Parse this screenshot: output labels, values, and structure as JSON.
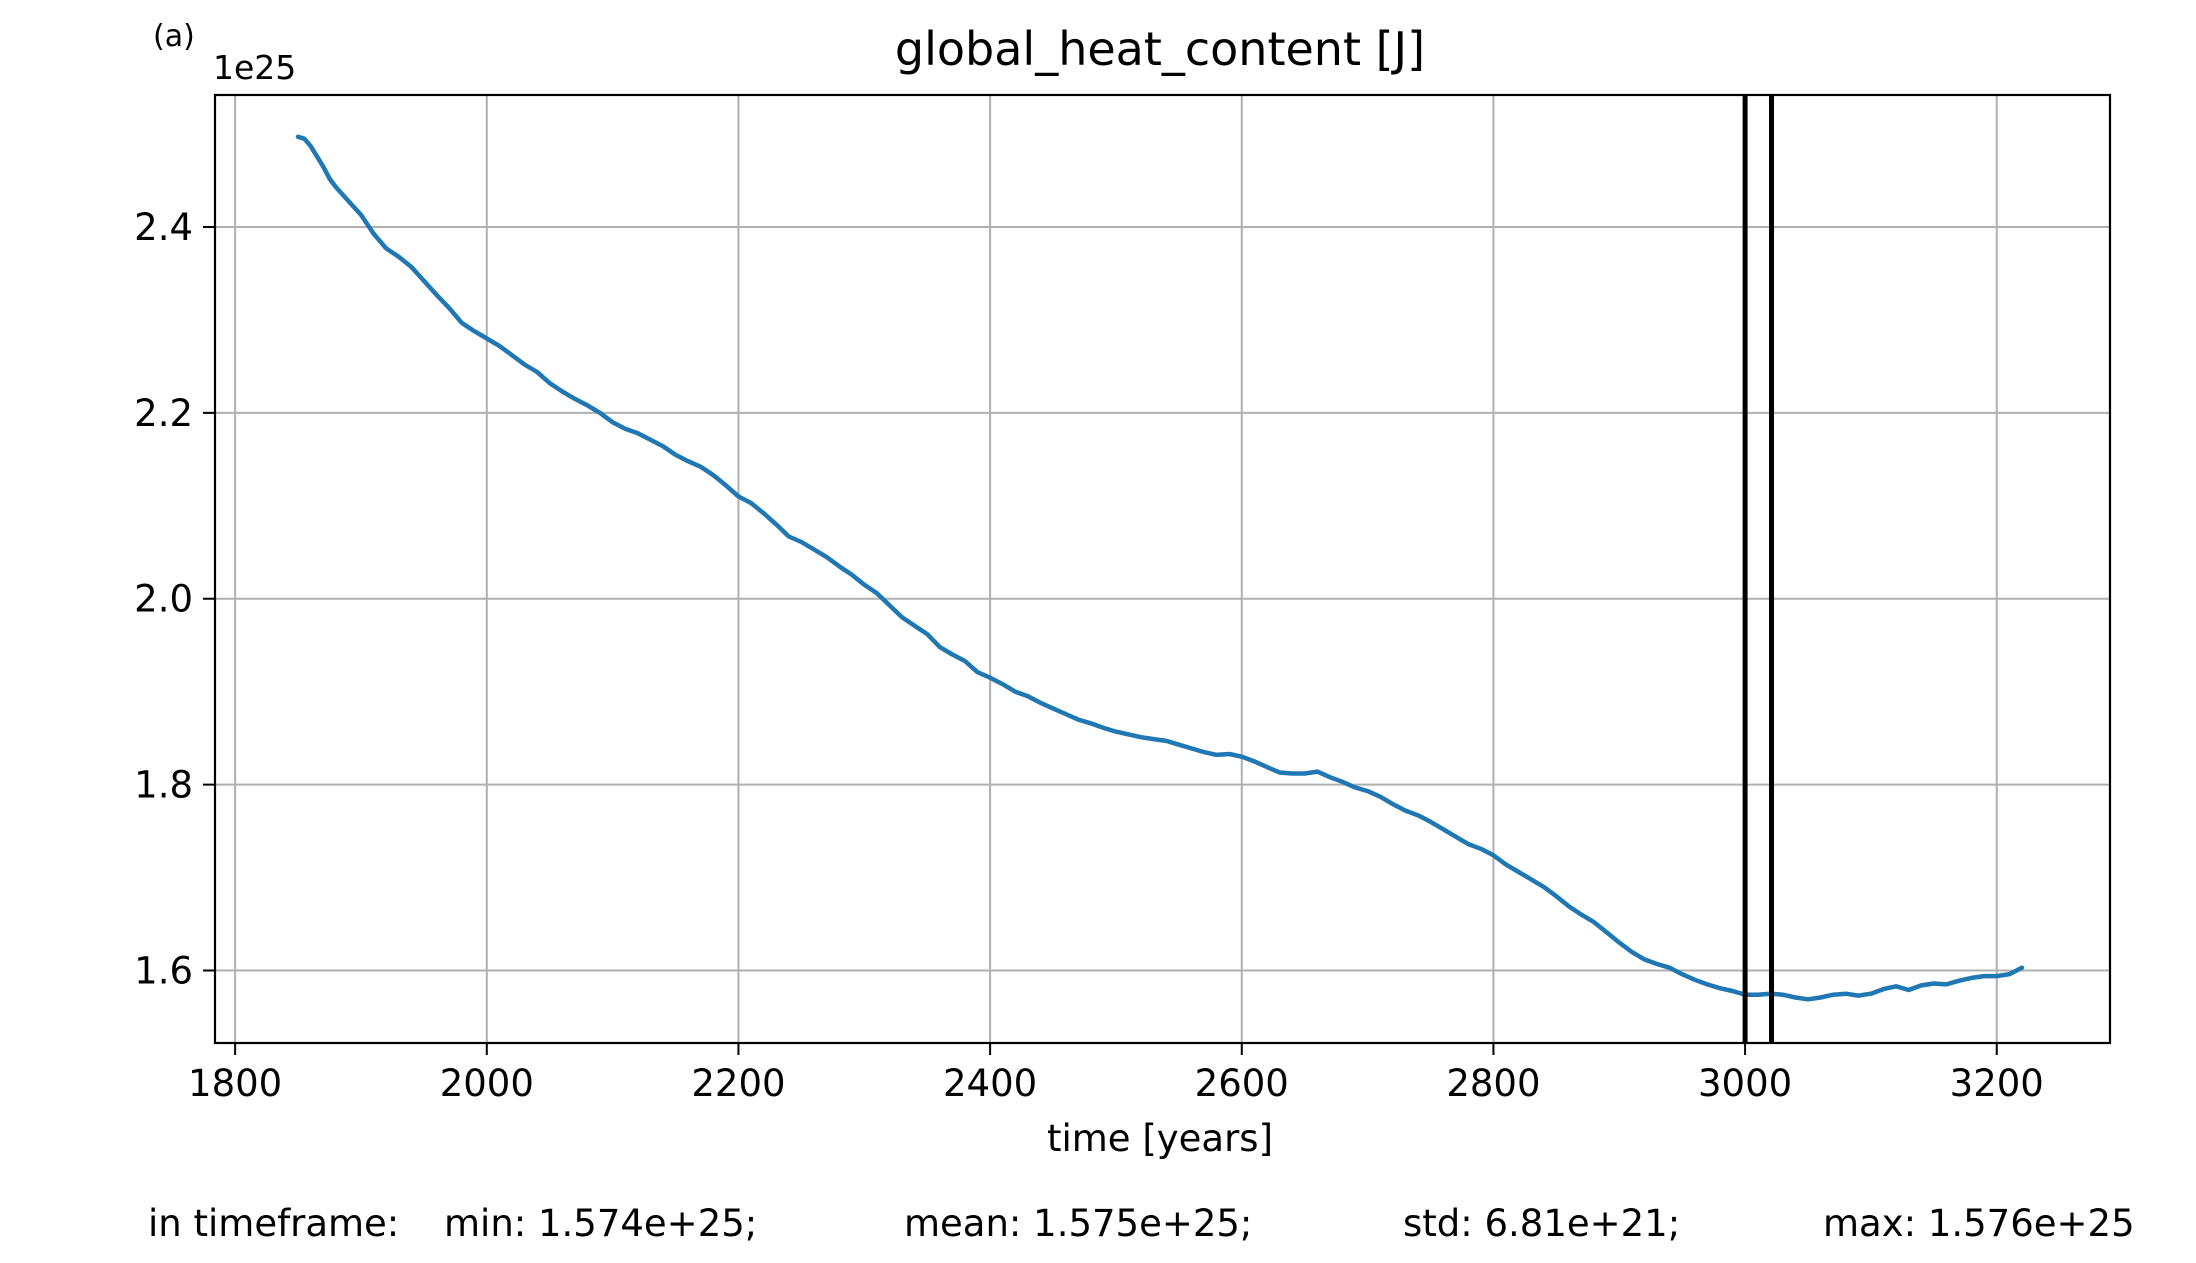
{
  "chart_data": {
    "type": "line",
    "panel_label": "(a)",
    "title": "global_heat_content [J]",
    "xlabel": "time [years]",
    "ylabel": "",
    "y_offset_label": "1e25",
    "y_scale_factor": 1e+25,
    "xlim": [
      1784,
      3290
    ],
    "ylim": [
      1.522,
      2.542
    ],
    "xticks": [
      1800,
      2000,
      2200,
      2400,
      2600,
      2800,
      3000,
      3200
    ],
    "xtick_labels": [
      "1800",
      "2000",
      "2200",
      "2400",
      "2600",
      "2800",
      "3000",
      "3200"
    ],
    "yticks": [
      1.6,
      1.8,
      2.0,
      2.2,
      2.4
    ],
    "ytick_labels": [
      "1.6",
      "1.8",
      "2.0",
      "2.2",
      "2.4"
    ],
    "grid": true,
    "line_color": "#1f77b4",
    "vline_color": "#000000",
    "vlines_x": [
      3000,
      3021
    ],
    "series": [
      {
        "x": [
          1850,
          1855,
          1860,
          1865,
          1870,
          1875,
          1880,
          1890,
          1900,
          1910,
          1920,
          1930,
          1940,
          1950,
          1960,
          1970,
          1980,
          1990,
          2000,
          2010,
          2020,
          2030,
          2040,
          2050,
          2060,
          2070,
          2080,
          2090,
          2100,
          2110,
          2120,
          2130,
          2140,
          2150,
          2160,
          2170,
          2180,
          2190,
          2200,
          2210,
          2220,
          2230,
          2240,
          2250,
          2260,
          2270,
          2280,
          2290,
          2300,
          2310,
          2320,
          2330,
          2340,
          2350,
          2360,
          2370,
          2380,
          2390,
          2400,
          2410,
          2420,
          2430,
          2440,
          2450,
          2460,
          2470,
          2480,
          2490,
          2500,
          2510,
          2520,
          2530,
          2540,
          2550,
          2560,
          2570,
          2580,
          2590,
          2600,
          2610,
          2620,
          2630,
          2640,
          2650,
          2660,
          2670,
          2680,
          2690,
          2700,
          2710,
          2720,
          2730,
          2740,
          2750,
          2760,
          2770,
          2780,
          2790,
          2800,
          2810,
          2820,
          2830,
          2840,
          2850,
          2860,
          2870,
          2880,
          2890,
          2900,
          2910,
          2920,
          2930,
          2940,
          2950,
          2960,
          2970,
          2980,
          2990,
          3000,
          3010,
          3020,
          3030,
          3040,
          3050,
          3060,
          3070,
          3080,
          3090,
          3100,
          3110,
          3120,
          3130,
          3140,
          3150,
          3160,
          3170,
          3180,
          3190,
          3200,
          3210,
          3220
        ],
        "values": [
          2.497,
          2.495,
          2.487,
          2.476,
          2.465,
          2.452,
          2.443,
          2.428,
          2.413,
          2.393,
          2.377,
          2.368,
          2.357,
          2.342,
          2.327,
          2.313,
          2.297,
          2.288,
          2.28,
          2.272,
          2.262,
          2.252,
          2.244,
          2.232,
          2.223,
          2.215,
          2.208,
          2.2,
          2.19,
          2.183,
          2.178,
          2.171,
          2.164,
          2.155,
          2.148,
          2.142,
          2.133,
          2.122,
          2.11,
          2.103,
          2.092,
          2.08,
          2.067,
          2.061,
          2.053,
          2.045,
          2.035,
          2.026,
          2.015,
          2.006,
          1.993,
          1.98,
          1.971,
          1.962,
          1.948,
          1.94,
          1.933,
          1.921,
          1.915,
          1.908,
          1.9,
          1.895,
          1.888,
          1.882,
          1.876,
          1.87,
          1.866,
          1.861,
          1.857,
          1.854,
          1.851,
          1.849,
          1.847,
          1.843,
          1.839,
          1.835,
          1.832,
          1.833,
          1.83,
          1.825,
          1.819,
          1.813,
          1.812,
          1.812,
          1.814,
          1.808,
          1.803,
          1.797,
          1.793,
          1.787,
          1.779,
          1.772,
          1.767,
          1.76,
          1.752,
          1.744,
          1.736,
          1.731,
          1.724,
          1.714,
          1.706,
          1.698,
          1.69,
          1.68,
          1.669,
          1.66,
          1.652,
          1.641,
          1.63,
          1.62,
          1.612,
          1.607,
          1.603,
          1.596,
          1.59,
          1.585,
          1.581,
          1.578,
          1.574,
          1.574,
          1.575,
          1.574,
          1.571,
          1.569,
          1.571,
          1.574,
          1.575,
          1.573,
          1.575,
          1.58,
          1.583,
          1.579,
          1.584,
          1.586,
          1.585,
          1.589,
          1.592,
          1.594,
          1.594,
          1.596,
          1.603
        ]
      }
    ]
  },
  "stats": {
    "label": "in timeframe:",
    "min": "min: 1.574e+25;",
    "mean": "mean: 1.575e+25;",
    "std": "std: 6.81e+21;",
    "max": "max: 1.576e+25"
  }
}
